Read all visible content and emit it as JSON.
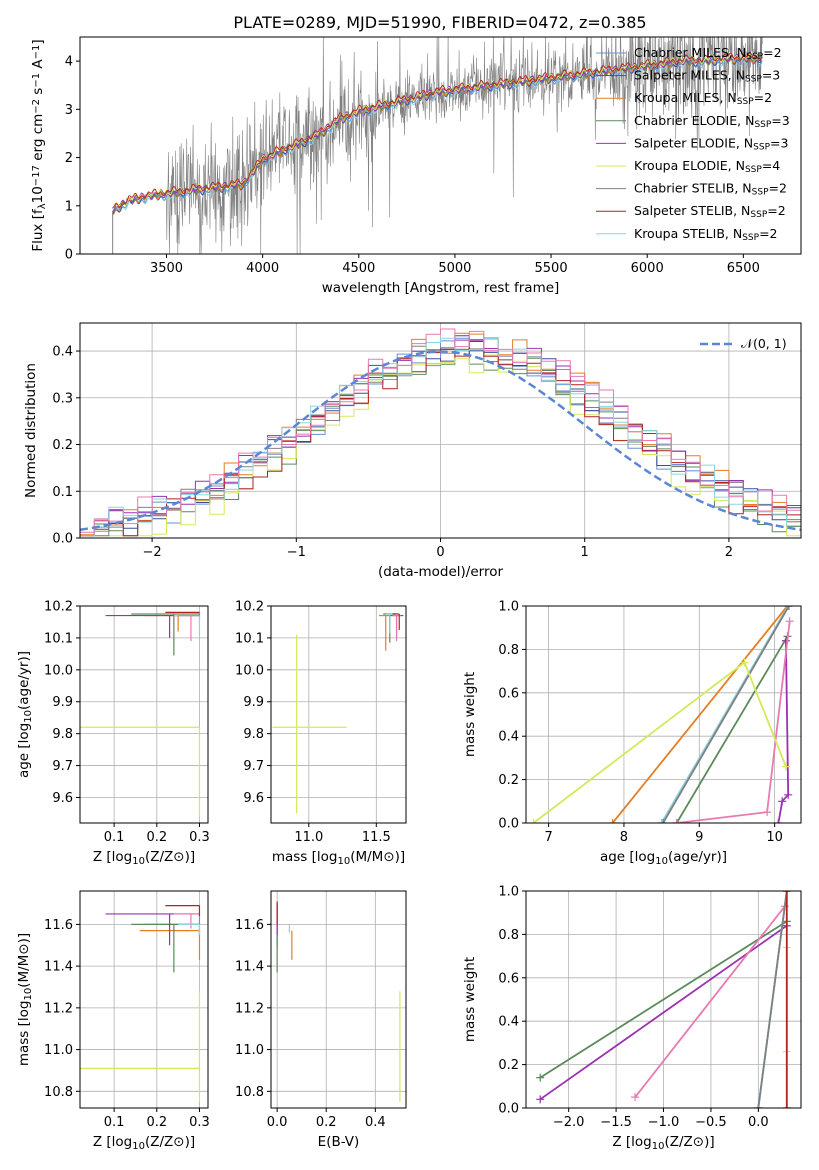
{
  "figure": {
    "title": "PLATE=0289, MJD=51990, FIBERID=0472, z=0.385"
  },
  "colors": {
    "Chabrier MILES": "#6a8fd8",
    "Salpeter MILES": "#3c4f9a",
    "Kroupa MILES": "#e67e22",
    "Chabrier ELODIE": "#5b8a5b",
    "Salpeter ELODIE": "#9b30b0",
    "Kroupa ELODIE": "#d6e85a",
    "Chabrier STELIB": "#808080",
    "Salpeter STELIB": "#b22222",
    "Kroupa STELIB": "#8ad6e0",
    "pink": "#e87ab0",
    "gaussian": "#5b86d6"
  },
  "chart_data": [
    {
      "id": "spectrum",
      "type": "line",
      "title": "PLATE=0289, MJD=51990, FIBERID=0472, z=0.385",
      "xlabel": "wavelength [Angstrom, rest frame]",
      "ylabel": "Flux [f_λ10^-17 erg cm^-2 s^-1 A^-1]",
      "xlim": [
        3050,
        6800
      ],
      "ylim": [
        0,
        4.5
      ],
      "xticks": [
        3500,
        4000,
        4500,
        5000,
        5500,
        6000,
        6500
      ],
      "yticks": [
        0,
        1,
        2,
        3,
        4
      ],
      "grid": false,
      "legend_position": "right",
      "legend": [
        {
          "label": "Chabrier MILES, N",
          "sub": "SSP",
          "suffix": "=2",
          "color_key": "Chabrier MILES"
        },
        {
          "label": "Salpeter MILES, N",
          "sub": "SSP",
          "suffix": "=3",
          "color_key": "Salpeter MILES"
        },
        {
          "label": "Kroupa MILES, N",
          "sub": "SSP",
          "suffix": "=2",
          "color_key": "Kroupa MILES"
        },
        {
          "label": "Chabrier ELODIE, N",
          "sub": "SSP",
          "suffix": "=3",
          "color_key": "Chabrier ELODIE"
        },
        {
          "label": "Salpeter ELODIE, N",
          "sub": "SSP",
          "suffix": "=3",
          "color_key": "Salpeter ELODIE"
        },
        {
          "label": "Kroupa ELODIE, N",
          "sub": "SSP",
          "suffix": "=4",
          "color_key": "Kroupa ELODIE"
        },
        {
          "label": "Chabrier STELIB, N",
          "sub": "SSP",
          "suffix": "=2",
          "color_key": "Chabrier STELIB"
        },
        {
          "label": "Salpeter STELIB, N",
          "sub": "SSP",
          "suffix": "=2",
          "color_key": "Salpeter STELIB"
        },
        {
          "label": "Kroupa STELIB, N",
          "sub": "SSP",
          "suffix": "=2",
          "color_key": "Kroupa STELIB"
        }
      ],
      "model_envelope": {
        "wavelength": [
          3220,
          3300,
          3400,
          3500,
          3600,
          3700,
          3800,
          3900,
          4000,
          4100,
          4200,
          4300,
          4400,
          4500,
          4600,
          4700,
          4800,
          4900,
          5000,
          5100,
          5200,
          5300,
          5400,
          5500,
          5600,
          5700,
          5800,
          5900,
          6000,
          6100,
          6200,
          6300,
          6400,
          6500,
          6600
        ],
        "flux": [
          0.9,
          1.1,
          1.2,
          1.25,
          1.3,
          1.35,
          1.4,
          1.45,
          1.95,
          2.15,
          2.3,
          2.5,
          2.8,
          2.95,
          3.05,
          3.15,
          3.25,
          3.35,
          3.4,
          3.45,
          3.5,
          3.55,
          3.6,
          3.65,
          3.7,
          3.75,
          3.8,
          3.85,
          3.9,
          3.95,
          4.0,
          4.0,
          4.05,
          4.05,
          4.05
        ]
      },
      "data_range_angstrom": [
        3220,
        6600
      ]
    },
    {
      "id": "residuals",
      "type": "histogram",
      "xlabel": "(data-model)/error",
      "ylabel": "Normed distribution",
      "xlim": [
        -2.5,
        2.5
      ],
      "ylim": [
        0,
        0.46
      ],
      "xticks": [
        -2,
        -1,
        0,
        1,
        2
      ],
      "yticks": [
        0.0,
        0.1,
        0.2,
        0.3,
        0.4
      ],
      "grid": true,
      "legend_position": "top-right",
      "legend": [
        {
          "label": "𝒩(0, 1)",
          "color_key": "gaussian",
          "style": "dashed"
        }
      ],
      "bin_width": 0.1,
      "bin_start": -2.5,
      "series": [
        {
          "name": "Chabrier MILES",
          "color_key": "Chabrier MILES",
          "offset": 0.0
        },
        {
          "name": "Salpeter MILES",
          "color_key": "Salpeter MILES",
          "offset": 0.01
        },
        {
          "name": "Kroupa MILES",
          "color_key": "Kroupa MILES",
          "offset": 0.02
        },
        {
          "name": "Chabrier ELODIE",
          "color_key": "Chabrier ELODIE",
          "offset": -0.01
        },
        {
          "name": "Salpeter ELODIE",
          "color_key": "Salpeter ELODIE",
          "offset": 0.015
        },
        {
          "name": "Kroupa ELODIE",
          "color_key": "Kroupa ELODIE",
          "offset": -0.02
        },
        {
          "name": "Chabrier STELIB",
          "color_key": "Chabrier STELIB",
          "offset": 0.005
        },
        {
          "name": "Salpeter STELIB",
          "color_key": "Salpeter STELIB",
          "offset": -0.005
        },
        {
          "name": "Kroupa STELIB",
          "color_key": "Kroupa STELIB",
          "offset": 0.012
        },
        {
          "name": "pink",
          "color_key": "pink",
          "offset": 0.025
        }
      ],
      "histogram_center_shift": 0.2,
      "histogram_sigma": 1.05
    },
    {
      "id": "age_vs_Z",
      "type": "errorbar",
      "xlabel": "Z [log10(Z/Z⊙)]",
      "ylabel": "age  [log10(age/yr)]",
      "xlim": [
        0.02,
        0.32
      ],
      "ylim": [
        9.52,
        10.2
      ],
      "xticks": [
        0.1,
        0.2,
        0.3
      ],
      "yticks": [
        9.6,
        9.7,
        9.8,
        9.9,
        10.0,
        10.1,
        10.2
      ],
      "grid": true,
      "points": [
        {
          "x": 0.3,
          "y": 10.18,
          "xerr": [
            0.0,
            0.0
          ],
          "yerr": [
            0.02,
            0.0
          ],
          "color_key": "Chabrier MILES"
        },
        {
          "x": 0.25,
          "y": 10.17,
          "xerr": [
            0.08,
            0.05
          ],
          "yerr": [
            0.05,
            0.0
          ],
          "color_key": "Kroupa MILES"
        },
        {
          "x": 0.24,
          "y": 10.175,
          "xerr": [
            0.1,
            0.06
          ],
          "yerr": [
            0.13,
            0.0
          ],
          "color_key": "Chabrier ELODIE"
        },
        {
          "x": 0.23,
          "y": 10.17,
          "xerr": [
            0.15,
            0.07
          ],
          "yerr": [
            0.07,
            0.0
          ],
          "color_key": "Salpeter ELODIE"
        },
        {
          "x": 0.3,
          "y": 9.82,
          "xerr": [
            0.28,
            0.0
          ],
          "yerr": [
            0.28,
            0.0
          ],
          "color_key": "Kroupa ELODIE"
        },
        {
          "x": 0.3,
          "y": 10.17,
          "xerr": [
            0.06,
            0.0
          ],
          "yerr": [
            0.06,
            0.0
          ],
          "color_key": "Kroupa STELIB"
        },
        {
          "x": 0.28,
          "y": 10.17,
          "xerr": [
            0.03,
            0.02
          ],
          "yerr": [
            0.08,
            0.0
          ],
          "color_key": "pink"
        },
        {
          "x": 0.3,
          "y": 10.18,
          "xerr": [
            0.08,
            0.0
          ],
          "yerr": [
            0.0,
            0.0
          ],
          "color_key": "Salpeter STELIB"
        }
      ]
    },
    {
      "id": "age_vs_mass",
      "type": "errorbar",
      "xlabel": "mass [log10(M/M⊙)]",
      "ylabel": "",
      "xlim": [
        10.72,
        11.72
      ],
      "ylim": [
        9.52,
        10.2
      ],
      "xticks": [
        11.0,
        11.5
      ],
      "yticks": [
        9.6,
        9.7,
        9.8,
        9.9,
        10.0,
        10.1,
        10.2
      ],
      "grid": true,
      "points": [
        {
          "x": 11.6,
          "y": 10.175,
          "xerr": [
            0.05,
            0.05
          ],
          "yerr": [
            0.06,
            0.0
          ],
          "color_key": "Chabrier MILES"
        },
        {
          "x": 11.57,
          "y": 10.17,
          "xerr": [
            0.05,
            0.03
          ],
          "yerr": [
            0.11,
            0.0
          ],
          "color_key": "Kroupa MILES"
        },
        {
          "x": 11.6,
          "y": 10.175,
          "xerr": [
            0.04,
            0.04
          ],
          "yerr": [
            0.09,
            0.0
          ],
          "color_key": "Chabrier ELODIE"
        },
        {
          "x": 11.65,
          "y": 10.17,
          "xerr": [
            0.05,
            0.05
          ],
          "yerr": [
            0.07,
            0.0
          ],
          "color_key": "Salpeter ELODIE"
        },
        {
          "x": 10.91,
          "y": 9.82,
          "xerr": [
            0.18,
            0.37
          ],
          "yerr": [
            0.27,
            0.29
          ],
          "color_key": "Kroupa ELODIE"
        },
        {
          "x": 11.6,
          "y": 10.175,
          "xerr": [
            0.03,
            0.03
          ],
          "yerr": [
            0.06,
            0.0
          ],
          "color_key": "Kroupa STELIB"
        },
        {
          "x": 11.65,
          "y": 10.17,
          "xerr": [
            0.03,
            0.03
          ],
          "yerr": [
            0.08,
            0.0
          ],
          "color_key": "pink"
        },
        {
          "x": 11.67,
          "y": 10.175,
          "xerr": [
            0.05,
            0.0
          ],
          "yerr": [
            0.05,
            0.0
          ],
          "color_key": "Salpeter STELIB"
        }
      ]
    },
    {
      "id": "weight_vs_age",
      "type": "line",
      "xlabel": "age  [log10(age/yr)]",
      "ylabel": "mass weight",
      "xlim": [
        6.7,
        10.35
      ],
      "ylim": [
        0,
        1.0
      ],
      "xticks": [
        7,
        8,
        9,
        10
      ],
      "yticks": [
        0.0,
        0.2,
        0.4,
        0.6,
        0.8,
        1.0
      ],
      "grid": true,
      "series": [
        {
          "name": "Chabrier MILES",
          "color_key": "Chabrier MILES",
          "x": [
            8.5,
            10.18
          ],
          "y": [
            0.0,
            1.0
          ]
        },
        {
          "name": "Kroupa MILES",
          "color_key": "Kroupa MILES",
          "x": [
            7.85,
            10.17
          ],
          "y": [
            0.0,
            1.0
          ]
        },
        {
          "name": "Kroupa STELIB",
          "color_key": "Kroupa STELIB",
          "x": [
            8.5,
            10.18
          ],
          "y": [
            0.0,
            1.0
          ]
        },
        {
          "name": "Chabrier STELIB",
          "color_key": "Chabrier STELIB",
          "x": [
            8.52,
            10.19
          ],
          "y": [
            0.0,
            1.0
          ]
        },
        {
          "name": "Chabrier ELODIE",
          "color_key": "Chabrier ELODIE",
          "x": [
            8.7,
            10.17
          ],
          "y": [
            0.0,
            0.86
          ]
        },
        {
          "name": "Salpeter ELODIE",
          "color_key": "Salpeter ELODIE",
          "x": [
            10.05,
            10.1,
            10.18,
            10.15
          ],
          "y": [
            0.0,
            0.1,
            0.13,
            0.84
          ]
        },
        {
          "name": "pink",
          "color_key": "pink",
          "x": [
            8.7,
            9.9,
            10.2
          ],
          "y": [
            0.0,
            0.05,
            0.93
          ]
        },
        {
          "name": "Kroupa ELODIE",
          "color_key": "Kroupa ELODIE",
          "x": [
            6.8,
            9.6,
            10.15
          ],
          "y": [
            0.0,
            0.74,
            0.26
          ]
        }
      ]
    },
    {
      "id": "mass_vs_Z",
      "type": "errorbar",
      "xlabel": "Z [log10(Z/Z⊙)]",
      "ylabel": "mass [log10(M/M⊙)]",
      "xlim": [
        0.02,
        0.32
      ],
      "ylim": [
        10.72,
        11.76
      ],
      "xticks": [
        0.1,
        0.2,
        0.3
      ],
      "yticks": [
        10.8,
        11.0,
        11.2,
        11.4,
        11.6
      ],
      "grid": true,
      "points": [
        {
          "x": 0.3,
          "y": 11.6,
          "xerr": [
            0.13,
            0.0
          ],
          "yerr": [
            0.05,
            0.05
          ],
          "color_key": "Chabrier MILES"
        },
        {
          "x": 0.3,
          "y": 11.57,
          "xerr": [
            0.14,
            0.0
          ],
          "yerr": [
            0.14,
            0.0
          ],
          "color_key": "Kroupa MILES"
        },
        {
          "x": 0.24,
          "y": 11.6,
          "xerr": [
            0.1,
            0.06
          ],
          "yerr": [
            0.23,
            0.0
          ],
          "color_key": "Chabrier ELODIE"
        },
        {
          "x": 0.23,
          "y": 11.65,
          "xerr": [
            0.15,
            0.07
          ],
          "yerr": [
            0.15,
            0.0
          ],
          "color_key": "Salpeter ELODIE"
        },
        {
          "x": 0.3,
          "y": 10.91,
          "xerr": [
            0.28,
            0.0
          ],
          "yerr": [
            0.16,
            0.37
          ],
          "color_key": "Kroupa ELODIE"
        },
        {
          "x": 0.28,
          "y": 11.65,
          "xerr": [
            0.04,
            0.02
          ],
          "yerr": [
            0.07,
            0.0
          ],
          "color_key": "pink"
        },
        {
          "x": 0.3,
          "y": 11.69,
          "xerr": [
            0.08,
            0.0
          ],
          "yerr": [
            0.05,
            0.0
          ],
          "color_key": "Salpeter STELIB"
        },
        {
          "x": 0.3,
          "y": 11.6,
          "xerr": [
            0.05,
            0.0
          ],
          "yerr": [
            0.05,
            0.0
          ],
          "color_key": "Kroupa STELIB"
        }
      ]
    },
    {
      "id": "mass_vs_EBV",
      "type": "errorbar",
      "xlabel": "E(B-V)",
      "ylabel": "",
      "xlim": [
        -0.025,
        0.525
      ],
      "ylim": [
        10.72,
        11.76
      ],
      "xticks": [
        0.0,
        0.2,
        0.4
      ],
      "yticks": [
        10.8,
        11.0,
        11.2,
        11.4,
        11.6
      ],
      "grid": true,
      "points": [
        {
          "x": 0.0,
          "y": 11.6,
          "xerr": [
            0.0,
            0.0
          ],
          "yerr": [
            0.12,
            0.1
          ],
          "color_key": "Chabrier MILES"
        },
        {
          "x": 0.0,
          "y": 11.6,
          "xerr": [
            0.0,
            0.0
          ],
          "yerr": [
            0.23,
            0.0
          ],
          "color_key": "Chabrier ELODIE"
        },
        {
          "x": 0.0,
          "y": 11.65,
          "xerr": [
            0.0,
            0.0
          ],
          "yerr": [
            0.1,
            0.05
          ],
          "color_key": "Salpeter ELODIE"
        },
        {
          "x": 0.0,
          "y": 11.68,
          "xerr": [
            0.0,
            0.0
          ],
          "yerr": [
            0.08,
            0.03
          ],
          "color_key": "Salpeter STELIB"
        },
        {
          "x": 0.06,
          "y": 11.57,
          "xerr": [
            0.0,
            0.0
          ],
          "yerr": [
            0.14,
            0.0
          ],
          "color_key": "Kroupa MILES"
        },
        {
          "x": 0.5,
          "y": 10.91,
          "xerr": [
            0.0,
            0.0
          ],
          "yerr": [
            0.16,
            0.37
          ],
          "color_key": "Kroupa ELODIE"
        },
        {
          "x": 0.05,
          "y": 11.6,
          "xerr": [
            0.0,
            0.0
          ],
          "yerr": [
            0.04,
            0.0
          ],
          "color_key": "Kroupa STELIB"
        }
      ]
    },
    {
      "id": "weight_vs_Z",
      "type": "line",
      "xlabel": "Z [log10(Z/Z⊙)]",
      "ylabel": "mass weight",
      "xlim": [
        -2.45,
        0.45
      ],
      "ylim": [
        0,
        1.0
      ],
      "xticks": [
        -2.0,
        -1.5,
        -1.0,
        -0.5,
        0.0
      ],
      "yticks": [
        0.0,
        0.2,
        0.4,
        0.6,
        0.8,
        1.0
      ],
      "grid": true,
      "series": [
        {
          "name": "Chabrier ELODIE",
          "color_key": "Chabrier ELODIE",
          "x": [
            -2.3,
            0.3
          ],
          "y": [
            0.14,
            0.86
          ]
        },
        {
          "name": "Salpeter ELODIE",
          "color_key": "Salpeter ELODIE",
          "x": [
            -2.3,
            0.3
          ],
          "y": [
            0.04,
            0.84
          ]
        },
        {
          "name": "pink",
          "color_key": "pink",
          "x": [
            -1.3,
            0.28
          ],
          "y": [
            0.05,
            0.93
          ]
        },
        {
          "name": "Chabrier MILES",
          "color_key": "Chabrier MILES",
          "x": [
            0.0,
            0.3
          ],
          "y": [
            0.0,
            1.0
          ]
        },
        {
          "name": "Kroupa STELIB",
          "color_key": "Kroupa STELIB",
          "x": [
            0.0,
            0.3
          ],
          "y": [
            0.0,
            1.0
          ]
        },
        {
          "name": "Chabrier STELIB",
          "color_key": "Chabrier STELIB",
          "x": [
            0.0,
            0.3
          ],
          "y": [
            0.0,
            1.0
          ]
        },
        {
          "name": "Kroupa ELODIE",
          "color_key": "Kroupa ELODIE",
          "x": [
            0.3,
            0.3,
            0.3
          ],
          "y": [
            0.0,
            0.26,
            0.74
          ]
        },
        {
          "name": "Salpeter STELIB",
          "color_key": "Salpeter STELIB",
          "x": [
            0.3,
            0.3
          ],
          "y": [
            0.0,
            1.0
          ]
        }
      ]
    }
  ]
}
